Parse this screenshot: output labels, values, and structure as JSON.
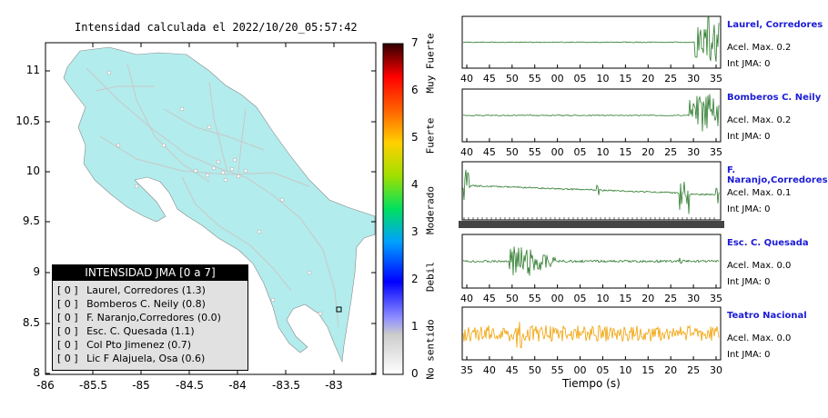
{
  "map": {
    "title": "Intensidad calculada el 2022/10/20_05:57:42",
    "lon_ticks": [
      "-86",
      "-85.5",
      "-85",
      "-84.5",
      "-84",
      "-83.5",
      "-83"
    ],
    "lat_ticks": [
      "11",
      "10.5",
      "10",
      "9.5",
      "9",
      "8.5",
      "8"
    ],
    "colors": {
      "land": "#b3ecec",
      "roads": "#c8c8c8",
      "sea": "#ffffff"
    }
  },
  "colorbar": {
    "ticks": [
      "0",
      "1",
      "2",
      "3",
      "4",
      "5",
      "6",
      "7"
    ],
    "level_labels": [
      "No sentido",
      "Debil",
      "Moderado",
      "Fuerte",
      "Muy Fuerte"
    ]
  },
  "intensity_box": {
    "title": "INTENSIDAD JMA [0 a 7]",
    "rows": [
      {
        "jma": "[ 0 ]",
        "station": "Laurel, Corredores (1.3)"
      },
      {
        "jma": "[ 0 ]",
        "station": "Bomberos C. Neily (0.8)"
      },
      {
        "jma": "[ 0 ]",
        "station": "F. Naranjo,Corredores (0.0)"
      },
      {
        "jma": "[ 0 ]",
        "station": "Esc. C. Quesada (1.1)"
      },
      {
        "jma": "[ 0 ]",
        "station": "Col Pto Jimenez (0.7)"
      },
      {
        "jma": "[ 0 ]",
        "station": "Lic F Alajuela, Osa (0.6)"
      }
    ]
  },
  "stations": [
    {
      "name": "Laurel, Corredores",
      "acel": "Acel. Max. 0.2",
      "int": "Int JMA: 0",
      "ticks": [
        "40",
        "45",
        "50",
        "55",
        "00",
        "05",
        "10",
        "15",
        "20",
        "25",
        "30",
        "35"
      ],
      "color": "#2a7a2a"
    },
    {
      "name": "Bomberos C. Neily",
      "acel": "Acel. Max. 0.2",
      "int": "Int JMA: 0",
      "ticks": [
        "40",
        "45",
        "50",
        "55",
        "00",
        "05",
        "10",
        "15",
        "20",
        "25",
        "30",
        "35"
      ],
      "color": "#2a7a2a"
    },
    {
      "name": "F. Naranjo,Corredores",
      "acel": "Acel. Max. 0.1",
      "int": "Int JMA: 0",
      "ticks": [],
      "color": "#2a7a2a"
    },
    {
      "name": "Esc. C. Quesada",
      "acel": "Acel. Max. 0.0",
      "int": "Int JMA: 0",
      "ticks": [
        "40",
        "45",
        "50",
        "55",
        "00",
        "05",
        "10",
        "15",
        "20",
        "25",
        "30",
        "35"
      ],
      "color": "#2a7a2a"
    },
    {
      "name": "Teatro Nacional",
      "acel": "Acel. Max. 0.0",
      "int": "Int JMA: 0",
      "ticks": [
        "35",
        "40",
        "45",
        "50",
        "55",
        "00",
        "05",
        "10",
        "15",
        "20",
        "25",
        "30"
      ],
      "color": "#f0a000"
    }
  ],
  "time_axis_label": "Tiempo (s)"
}
